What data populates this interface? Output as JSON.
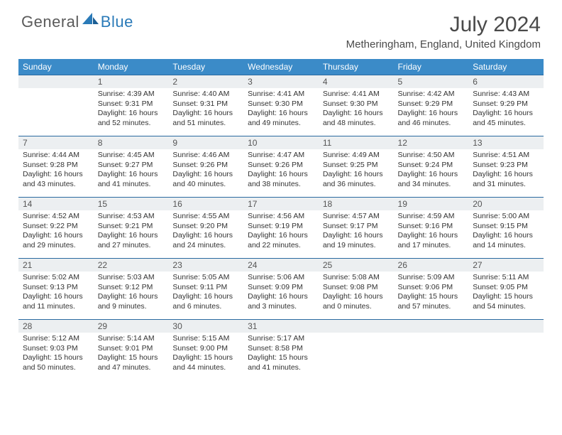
{
  "brand": {
    "part1": "General",
    "part2": "Blue"
  },
  "colors": {
    "header_bg": "#3b8bc8",
    "header_text": "#ffffff",
    "daynum_bg": "#eceff1",
    "border": "#2a6aa0",
    "title_text": "#4a4a4a",
    "body_text": "#333333",
    "logo_gray": "#5a5a5a",
    "logo_blue": "#2a7ab8"
  },
  "title": "July 2024",
  "location": "Metheringham, England, United Kingdom",
  "day_headers": [
    "Sunday",
    "Monday",
    "Tuesday",
    "Wednesday",
    "Thursday",
    "Friday",
    "Saturday"
  ],
  "weeks": [
    [
      {
        "num": "",
        "sunrise": "",
        "sunset": "",
        "daylight": ""
      },
      {
        "num": "1",
        "sunrise": "Sunrise: 4:39 AM",
        "sunset": "Sunset: 9:31 PM",
        "daylight": "Daylight: 16 hours and 52 minutes."
      },
      {
        "num": "2",
        "sunrise": "Sunrise: 4:40 AM",
        "sunset": "Sunset: 9:31 PM",
        "daylight": "Daylight: 16 hours and 51 minutes."
      },
      {
        "num": "3",
        "sunrise": "Sunrise: 4:41 AM",
        "sunset": "Sunset: 9:30 PM",
        "daylight": "Daylight: 16 hours and 49 minutes."
      },
      {
        "num": "4",
        "sunrise": "Sunrise: 4:41 AM",
        "sunset": "Sunset: 9:30 PM",
        "daylight": "Daylight: 16 hours and 48 minutes."
      },
      {
        "num": "5",
        "sunrise": "Sunrise: 4:42 AM",
        "sunset": "Sunset: 9:29 PM",
        "daylight": "Daylight: 16 hours and 46 minutes."
      },
      {
        "num": "6",
        "sunrise": "Sunrise: 4:43 AM",
        "sunset": "Sunset: 9:29 PM",
        "daylight": "Daylight: 16 hours and 45 minutes."
      }
    ],
    [
      {
        "num": "7",
        "sunrise": "Sunrise: 4:44 AM",
        "sunset": "Sunset: 9:28 PM",
        "daylight": "Daylight: 16 hours and 43 minutes."
      },
      {
        "num": "8",
        "sunrise": "Sunrise: 4:45 AM",
        "sunset": "Sunset: 9:27 PM",
        "daylight": "Daylight: 16 hours and 41 minutes."
      },
      {
        "num": "9",
        "sunrise": "Sunrise: 4:46 AM",
        "sunset": "Sunset: 9:26 PM",
        "daylight": "Daylight: 16 hours and 40 minutes."
      },
      {
        "num": "10",
        "sunrise": "Sunrise: 4:47 AM",
        "sunset": "Sunset: 9:26 PM",
        "daylight": "Daylight: 16 hours and 38 minutes."
      },
      {
        "num": "11",
        "sunrise": "Sunrise: 4:49 AM",
        "sunset": "Sunset: 9:25 PM",
        "daylight": "Daylight: 16 hours and 36 minutes."
      },
      {
        "num": "12",
        "sunrise": "Sunrise: 4:50 AM",
        "sunset": "Sunset: 9:24 PM",
        "daylight": "Daylight: 16 hours and 34 minutes."
      },
      {
        "num": "13",
        "sunrise": "Sunrise: 4:51 AM",
        "sunset": "Sunset: 9:23 PM",
        "daylight": "Daylight: 16 hours and 31 minutes."
      }
    ],
    [
      {
        "num": "14",
        "sunrise": "Sunrise: 4:52 AM",
        "sunset": "Sunset: 9:22 PM",
        "daylight": "Daylight: 16 hours and 29 minutes."
      },
      {
        "num": "15",
        "sunrise": "Sunrise: 4:53 AM",
        "sunset": "Sunset: 9:21 PM",
        "daylight": "Daylight: 16 hours and 27 minutes."
      },
      {
        "num": "16",
        "sunrise": "Sunrise: 4:55 AM",
        "sunset": "Sunset: 9:20 PM",
        "daylight": "Daylight: 16 hours and 24 minutes."
      },
      {
        "num": "17",
        "sunrise": "Sunrise: 4:56 AM",
        "sunset": "Sunset: 9:19 PM",
        "daylight": "Daylight: 16 hours and 22 minutes."
      },
      {
        "num": "18",
        "sunrise": "Sunrise: 4:57 AM",
        "sunset": "Sunset: 9:17 PM",
        "daylight": "Daylight: 16 hours and 19 minutes."
      },
      {
        "num": "19",
        "sunrise": "Sunrise: 4:59 AM",
        "sunset": "Sunset: 9:16 PM",
        "daylight": "Daylight: 16 hours and 17 minutes."
      },
      {
        "num": "20",
        "sunrise": "Sunrise: 5:00 AM",
        "sunset": "Sunset: 9:15 PM",
        "daylight": "Daylight: 16 hours and 14 minutes."
      }
    ],
    [
      {
        "num": "21",
        "sunrise": "Sunrise: 5:02 AM",
        "sunset": "Sunset: 9:13 PM",
        "daylight": "Daylight: 16 hours and 11 minutes."
      },
      {
        "num": "22",
        "sunrise": "Sunrise: 5:03 AM",
        "sunset": "Sunset: 9:12 PM",
        "daylight": "Daylight: 16 hours and 9 minutes."
      },
      {
        "num": "23",
        "sunrise": "Sunrise: 5:05 AM",
        "sunset": "Sunset: 9:11 PM",
        "daylight": "Daylight: 16 hours and 6 minutes."
      },
      {
        "num": "24",
        "sunrise": "Sunrise: 5:06 AM",
        "sunset": "Sunset: 9:09 PM",
        "daylight": "Daylight: 16 hours and 3 minutes."
      },
      {
        "num": "25",
        "sunrise": "Sunrise: 5:08 AM",
        "sunset": "Sunset: 9:08 PM",
        "daylight": "Daylight: 16 hours and 0 minutes."
      },
      {
        "num": "26",
        "sunrise": "Sunrise: 5:09 AM",
        "sunset": "Sunset: 9:06 PM",
        "daylight": "Daylight: 15 hours and 57 minutes."
      },
      {
        "num": "27",
        "sunrise": "Sunrise: 5:11 AM",
        "sunset": "Sunset: 9:05 PM",
        "daylight": "Daylight: 15 hours and 54 minutes."
      }
    ],
    [
      {
        "num": "28",
        "sunrise": "Sunrise: 5:12 AM",
        "sunset": "Sunset: 9:03 PM",
        "daylight": "Daylight: 15 hours and 50 minutes."
      },
      {
        "num": "29",
        "sunrise": "Sunrise: 5:14 AM",
        "sunset": "Sunset: 9:01 PM",
        "daylight": "Daylight: 15 hours and 47 minutes."
      },
      {
        "num": "30",
        "sunrise": "Sunrise: 5:15 AM",
        "sunset": "Sunset: 9:00 PM",
        "daylight": "Daylight: 15 hours and 44 minutes."
      },
      {
        "num": "31",
        "sunrise": "Sunrise: 5:17 AM",
        "sunset": "Sunset: 8:58 PM",
        "daylight": "Daylight: 15 hours and 41 minutes."
      },
      {
        "num": "",
        "sunrise": "",
        "sunset": "",
        "daylight": ""
      },
      {
        "num": "",
        "sunrise": "",
        "sunset": "",
        "daylight": ""
      },
      {
        "num": "",
        "sunrise": "",
        "sunset": "",
        "daylight": ""
      }
    ]
  ]
}
